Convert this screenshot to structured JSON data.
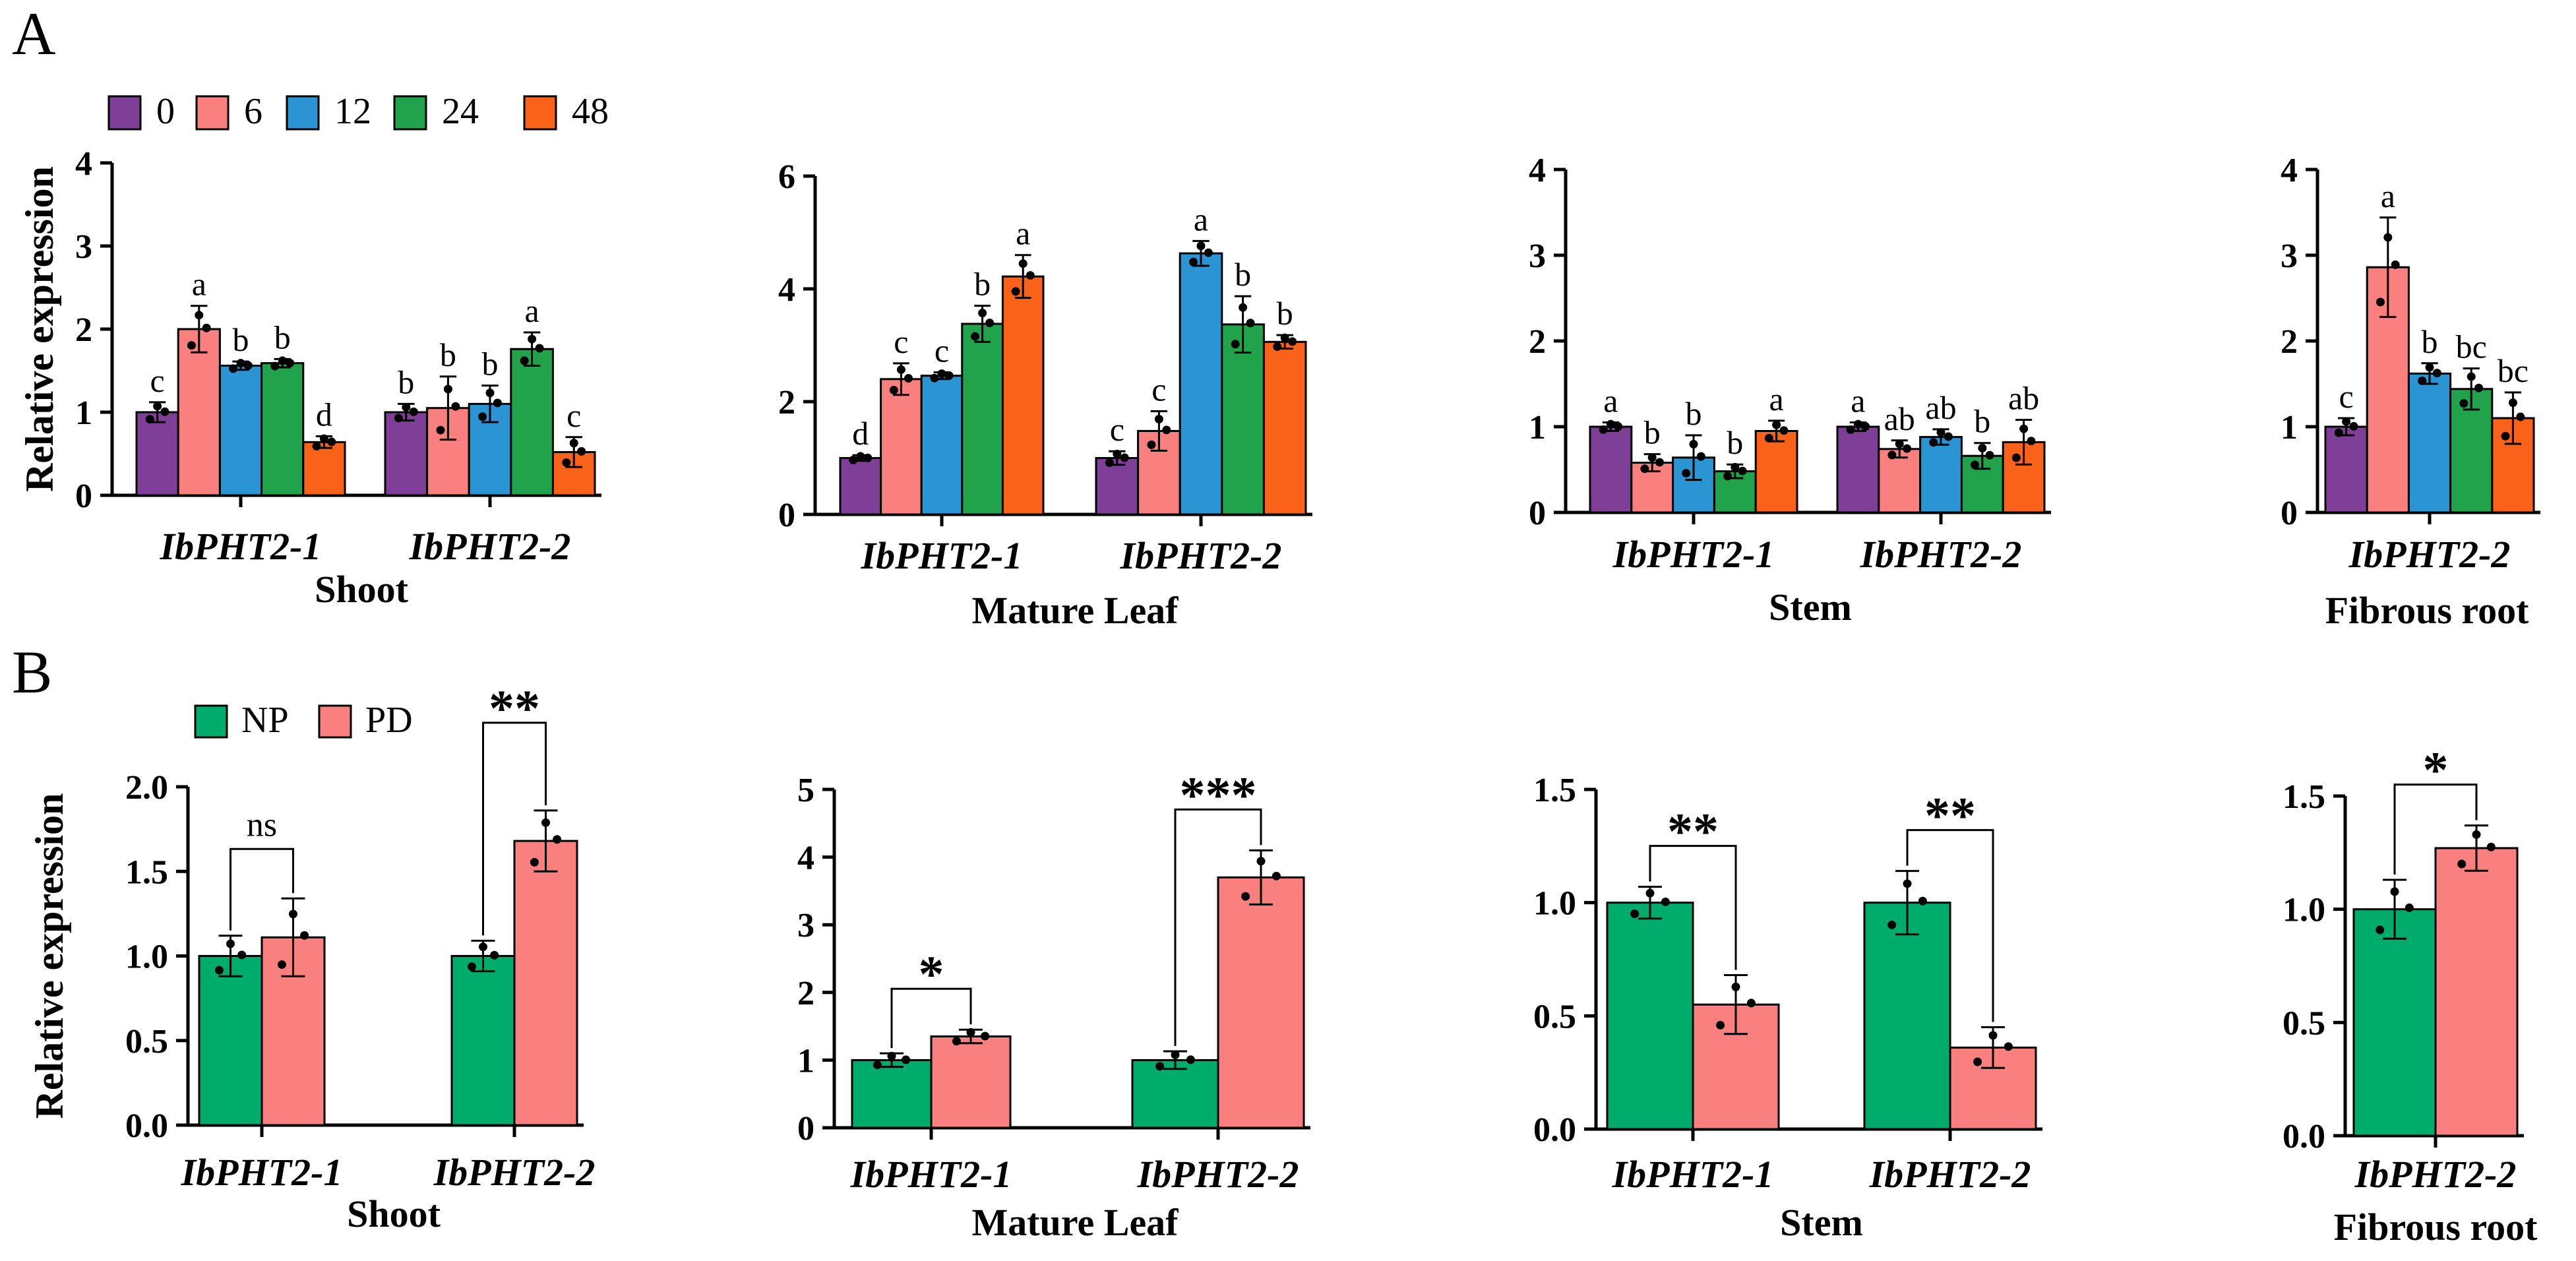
{
  "colors": {
    "t0": "#7f3f98",
    "t6": "#fa8080",
    "t12": "#2b94d2",
    "t24": "#20a34a",
    "t48": "#fa6219",
    "np": "#00ac6c",
    "pd": "#fa7f7f"
  },
  "panel_labels": {
    "a": "A",
    "b": "B"
  },
  "legend_a": [
    {
      "label": "0",
      "color_key": "t0"
    },
    {
      "label": "6",
      "color_key": "t6"
    },
    {
      "label": "12",
      "color_key": "t12"
    },
    {
      "label": "24",
      "color_key": "t24"
    },
    {
      "label": "48",
      "color_key": "t48"
    }
  ],
  "legend_b": [
    {
      "label": "NP",
      "color_key": "np"
    },
    {
      "label": "PD",
      "color_key": "pd"
    }
  ],
  "chart_data": [
    {
      "panel": "A",
      "type": "bar",
      "title": "Shoot",
      "ylabel": "Relative expression",
      "ylim": [
        0,
        4
      ],
      "yticks": [
        "0",
        "1",
        "2",
        "3",
        "4"
      ],
      "categories": [
        "IbPHT2-1",
        "IbPHT2-2"
      ],
      "series": [
        {
          "name": "0",
          "color_key": "t0",
          "values": [
            1.0,
            1.0
          ],
          "err": [
            0.12,
            0.1
          ],
          "letters": [
            "c",
            "b"
          ]
        },
        {
          "name": "6",
          "color_key": "t6",
          "values": [
            2.0,
            1.05
          ],
          "err": [
            0.28,
            0.38
          ],
          "letters": [
            "a",
            "b"
          ]
        },
        {
          "name": "12",
          "color_key": "t12",
          "values": [
            1.56,
            1.1
          ],
          "err": [
            0.05,
            0.22
          ],
          "letters": [
            "b",
            "b"
          ]
        },
        {
          "name": "24",
          "color_key": "t24",
          "values": [
            1.59,
            1.76
          ],
          "err": [
            0.05,
            0.2
          ],
          "letters": [
            "b",
            "a"
          ]
        },
        {
          "name": "48",
          "color_key": "t48",
          "values": [
            0.64,
            0.52
          ],
          "err": [
            0.07,
            0.18
          ],
          "letters": [
            "d",
            "c"
          ]
        }
      ]
    },
    {
      "panel": "A",
      "type": "bar",
      "title": "Mature Leaf",
      "ylabel": "",
      "ylim": [
        0,
        6
      ],
      "yticks": [
        "0",
        "2",
        "4",
        "6"
      ],
      "categories": [
        "IbPHT2-1",
        "IbPHT2-2"
      ],
      "series": [
        {
          "name": "0",
          "color_key": "t0",
          "values": [
            1.0,
            1.0
          ],
          "err": [
            0.05,
            0.12
          ],
          "letters": [
            "d",
            "c"
          ]
        },
        {
          "name": "6",
          "color_key": "t6",
          "values": [
            2.4,
            1.48
          ],
          "err": [
            0.28,
            0.35
          ],
          "letters": [
            "c",
            "c"
          ]
        },
        {
          "name": "12",
          "color_key": "t12",
          "values": [
            2.46,
            4.63
          ],
          "err": [
            0.06,
            0.22
          ],
          "letters": [
            "c",
            "a"
          ]
        },
        {
          "name": "24",
          "color_key": "t24",
          "values": [
            3.38,
            3.37
          ],
          "err": [
            0.32,
            0.5
          ],
          "letters": [
            "b",
            "b"
          ]
        },
        {
          "name": "48",
          "color_key": "t48",
          "values": [
            4.22,
            3.06
          ],
          "err": [
            0.38,
            0.12
          ],
          "letters": [
            "a",
            "b"
          ]
        }
      ]
    },
    {
      "panel": "A",
      "type": "bar",
      "title": "Stem",
      "ylabel": "",
      "ylim": [
        0,
        4
      ],
      "yticks": [
        "0",
        "1",
        "2",
        "3",
        "4"
      ],
      "categories": [
        "IbPHT2-1",
        "IbPHT2-2"
      ],
      "series": [
        {
          "name": "0",
          "color_key": "t0",
          "values": [
            1.0,
            1.0
          ],
          "err": [
            0.05,
            0.05
          ],
          "letters": [
            "a",
            "a"
          ]
        },
        {
          "name": "6",
          "color_key": "t6",
          "values": [
            0.58,
            0.74
          ],
          "err": [
            0.1,
            0.1
          ],
          "letters": [
            "b",
            "ab"
          ]
        },
        {
          "name": "12",
          "color_key": "t12",
          "values": [
            0.64,
            0.88
          ],
          "err": [
            0.26,
            0.09
          ],
          "letters": [
            "b",
            "ab"
          ]
        },
        {
          "name": "24",
          "color_key": "t24",
          "values": [
            0.48,
            0.66
          ],
          "err": [
            0.08,
            0.15
          ],
          "letters": [
            "b",
            "b"
          ]
        },
        {
          "name": "48",
          "color_key": "t48",
          "values": [
            0.95,
            0.82
          ],
          "err": [
            0.12,
            0.26
          ],
          "letters": [
            "a",
            "ab"
          ]
        }
      ]
    },
    {
      "panel": "A",
      "type": "bar",
      "title": "Fibrous root",
      "ylabel": "",
      "ylim": [
        0,
        4
      ],
      "yticks": [
        "0",
        "1",
        "2",
        "3",
        "4"
      ],
      "categories": [
        "IbPHT2-2"
      ],
      "series": [
        {
          "name": "0",
          "color_key": "t0",
          "values": [
            1.0
          ],
          "err": [
            0.1
          ],
          "letters": [
            "c"
          ]
        },
        {
          "name": "6",
          "color_key": "t6",
          "values": [
            2.86
          ],
          "err": [
            0.58
          ],
          "letters": [
            "a"
          ]
        },
        {
          "name": "12",
          "color_key": "t12",
          "values": [
            1.62
          ],
          "err": [
            0.12
          ],
          "letters": [
            "b"
          ]
        },
        {
          "name": "24",
          "color_key": "t24",
          "values": [
            1.44
          ],
          "err": [
            0.24
          ],
          "letters": [
            "bc"
          ]
        },
        {
          "name": "48",
          "color_key": "t48",
          "values": [
            1.1
          ],
          "err": [
            0.3
          ],
          "letters": [
            "bc"
          ]
        }
      ]
    },
    {
      "panel": "B",
      "type": "bar",
      "title": "Shoot",
      "ylabel": "Relative expression",
      "ylim": [
        0,
        2.0
      ],
      "yticks": [
        "0.0",
        "0.5",
        "1.0",
        "1.5",
        "2.0"
      ],
      "categories": [
        "IbPHT2-1",
        "IbPHT2-2"
      ],
      "series": [
        {
          "name": "NP",
          "color_key": "np",
          "values": [
            1.0,
            1.0
          ],
          "err": [
            0.12,
            0.09
          ]
        },
        {
          "name": "PD",
          "color_key": "pd",
          "values": [
            1.11,
            1.68
          ],
          "err": [
            0.23,
            0.18
          ]
        }
      ],
      "significance": [
        "ns",
        "**"
      ]
    },
    {
      "panel": "B",
      "type": "bar",
      "title": "Mature Leaf",
      "ylabel": "",
      "ylim": [
        0,
        5
      ],
      "yticks": [
        "0",
        "1",
        "2",
        "3",
        "4",
        "5"
      ],
      "categories": [
        "IbPHT2-1",
        "IbPHT2-2"
      ],
      "series": [
        {
          "name": "NP",
          "color_key": "np",
          "values": [
            1.0,
            1.0
          ],
          "err": [
            0.1,
            0.13
          ]
        },
        {
          "name": "PD",
          "color_key": "pd",
          "values": [
            1.35,
            3.7
          ],
          "err": [
            0.1,
            0.4
          ]
        }
      ],
      "significance": [
        "*",
        "***"
      ]
    },
    {
      "panel": "B",
      "type": "bar",
      "title": "Stem",
      "ylabel": "",
      "ylim": [
        0,
        1.5
      ],
      "yticks": [
        "0.0",
        "0.5",
        "1.0",
        "1.5"
      ],
      "categories": [
        "IbPHT2-1",
        "IbPHT2-2"
      ],
      "series": [
        {
          "name": "NP",
          "color_key": "np",
          "values": [
            1.0,
            1.0
          ],
          "err": [
            0.07,
            0.14
          ]
        },
        {
          "name": "PD",
          "color_key": "pd",
          "values": [
            0.55,
            0.36
          ],
          "err": [
            0.13,
            0.09
          ]
        }
      ],
      "significance": [
        "**",
        "**"
      ]
    },
    {
      "panel": "B",
      "type": "bar",
      "title": "Fibrous root",
      "ylabel": "",
      "ylim": [
        0,
        1.5
      ],
      "yticks": [
        "0.0",
        "0.5",
        "1.0",
        "1.5"
      ],
      "categories": [
        "IbPHT2-2"
      ],
      "series": [
        {
          "name": "NP",
          "color_key": "np",
          "values": [
            1.0
          ],
          "err": [
            0.13
          ]
        },
        {
          "name": "PD",
          "color_key": "pd",
          "values": [
            1.27
          ],
          "err": [
            0.1
          ]
        }
      ],
      "significance": [
        "*"
      ]
    }
  ]
}
